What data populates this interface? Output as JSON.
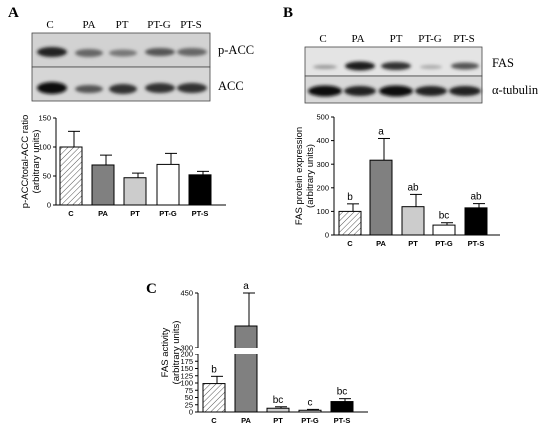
{
  "panels": [
    {
      "letter": "A"
    },
    {
      "letter": "B"
    },
    {
      "letter": "C"
    }
  ],
  "blots": {
    "A": {
      "lanes": [
        "C",
        "PA",
        "PT",
        "PT-G",
        "PT-S"
      ],
      "rows": [
        "p-ACC",
        "ACC"
      ]
    },
    "B": {
      "lanes": [
        "C",
        "PA",
        "PT",
        "PT-G",
        "PT-S"
      ],
      "rows": [
        "FAS",
        "α-tubulin"
      ]
    }
  },
  "colors": {
    "C": "#ffffff",
    "PA": "#808080",
    "PT": "#cccccc",
    "PT-G": "#ffffff",
    "PT-S": "#000000",
    "axis": "#000000"
  },
  "chart_data": [
    {
      "id": "A",
      "type": "bar",
      "categories": [
        "C",
        "PA",
        "PT",
        "PT-G",
        "PT-S"
      ],
      "values": [
        100,
        69,
        47,
        70,
        52
      ],
      "errors": [
        27,
        17,
        8,
        19,
        6
      ],
      "ylabel_lines": [
        "p-ACC/total-ACC ratio",
        "(arbitrary units)"
      ],
      "ylim": [
        0,
        150
      ],
      "yticks": [
        0,
        50,
        100,
        150
      ],
      "significance": []
    },
    {
      "id": "B",
      "type": "bar",
      "categories": [
        "C",
        "PA",
        "PT",
        "PT-G",
        "PT-S"
      ],
      "values": [
        100,
        317,
        120,
        42,
        115
      ],
      "errors": [
        32,
        92,
        52,
        10,
        18
      ],
      "ylabel_lines": [
        "FAS protein expression",
        "(arbitrary units)"
      ],
      "ylim": [
        0,
        500
      ],
      "yticks": [
        0,
        100,
        200,
        300,
        400,
        500
      ],
      "significance": [
        "b",
        "a",
        "ab",
        "bc",
        "ab"
      ]
    },
    {
      "id": "C",
      "type": "bar",
      "categories": [
        "C",
        "PA",
        "PT",
        "PT-G",
        "PT-S"
      ],
      "values": [
        98,
        360,
        13,
        6,
        36
      ],
      "errors": [
        25,
        115,
        5,
        3,
        10
      ],
      "ylabel_lines": [
        "FAS activity",
        "(arbitrary units)"
      ],
      "ylim": [
        0,
        450
      ],
      "yticks": [
        0,
        25,
        50,
        75,
        100,
        125,
        150,
        175,
        200,
        300,
        450
      ],
      "axis_break": [
        200,
        300
      ],
      "significance": [
        "b",
        "a",
        "bc",
        "c",
        "bc"
      ]
    }
  ]
}
